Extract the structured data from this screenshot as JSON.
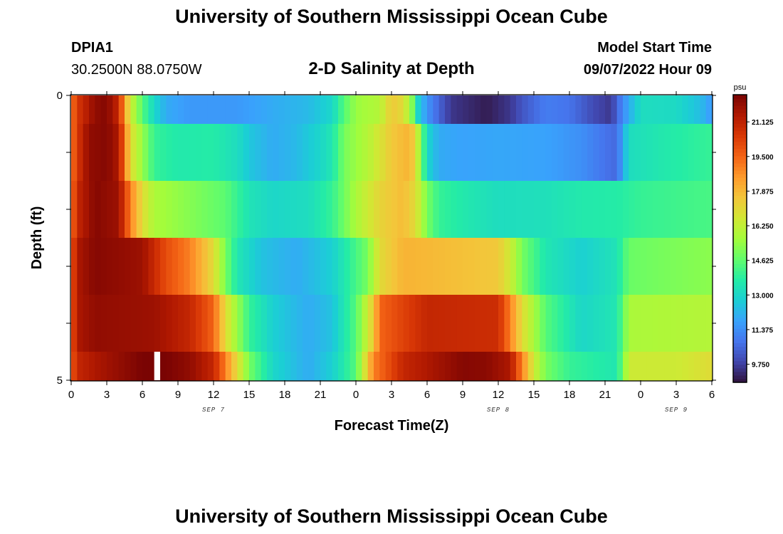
{
  "header": {
    "title": "University of Southern Mississippi Ocean Cube",
    "station": "DPIA1",
    "coords": "30.2500N  88.0750W",
    "subtitle": "2-D Salinity at Depth",
    "model_label": "Model Start Time",
    "model_time": "09/07/2022 Hour 09"
  },
  "footer": {
    "title": "University of Southern Mississippi Ocean Cube"
  },
  "colors": {
    "scale": [
      "#30123b",
      "#4145ab",
      "#4675ed",
      "#39a2fc",
      "#1bcfd4",
      "#24eca6",
      "#61fc6c",
      "#a4fc3b",
      "#d1e834",
      "#f3c63a",
      "#fe9b2d",
      "#f36315",
      "#d93806",
      "#b11901",
      "#7a0403"
    ]
  },
  "chart_data": {
    "type": "heatmap",
    "title": "2-D Salinity at Depth",
    "xlabel": "Forecast Time(Z)",
    "ylabel": "Depth (ft)",
    "colorbar_unit": "psu",
    "xlim": [
      0,
      54
    ],
    "ylim": [
      0,
      5
    ],
    "x_ticks": [
      0,
      3,
      6,
      9,
      12,
      15,
      18,
      21,
      24,
      27,
      30,
      33,
      36,
      39,
      42,
      45,
      48,
      51,
      54
    ],
    "x_tick_labels": [
      "0",
      "3",
      "6",
      "9",
      "12",
      "15",
      "18",
      "21",
      "0",
      "3",
      "6",
      "9",
      "12",
      "15",
      "18",
      "21",
      "0",
      "3",
      "6"
    ],
    "y_tick_labels": [
      {
        "value": 0,
        "label": "0"
      },
      {
        "value": 5,
        "label": "5"
      }
    ],
    "date_labels": [
      {
        "x": 12,
        "label": "SEP 7"
      },
      {
        "x": 36,
        "label": "SEP 8"
      },
      {
        "x": 51,
        "label": "SEP 9"
      }
    ],
    "colorbar_range": [
      8.9,
      22.4
    ],
    "colorbar_ticks": [
      9.75,
      11.375,
      13.0,
      14.625,
      16.25,
      17.875,
      19.5,
      21.125
    ],
    "colorbar_tick_labels": [
      "9.750",
      "11.375",
      "13.000",
      "14.625",
      "16.250",
      "17.875",
      "19.500",
      "21.125"
    ],
    "missing": [
      {
        "x": 7,
        "depth_band": 5
      }
    ],
    "depth_bands": [
      {
        "depth": [
          0.0,
          0.5
        ],
        "keypoints": [
          [
            0,
            19.0
          ],
          [
            0.5,
            20.5
          ],
          [
            2,
            22.0
          ],
          [
            3,
            22.2
          ],
          [
            4,
            21.0
          ],
          [
            4.5,
            18.5
          ],
          [
            5,
            16.5
          ],
          [
            6,
            14.5
          ],
          [
            7,
            13.0
          ],
          [
            8,
            12.0
          ],
          [
            10,
            11.6
          ],
          [
            14,
            11.6
          ],
          [
            17,
            12.0
          ],
          [
            20,
            12.3
          ],
          [
            22,
            13.0
          ],
          [
            23,
            14.5
          ],
          [
            24,
            15.5
          ],
          [
            26,
            16.0
          ],
          [
            27,
            17.5
          ],
          [
            28,
            17.0
          ],
          [
            28.8,
            15.0
          ],
          [
            29.2,
            13.0
          ],
          [
            30,
            11.5
          ],
          [
            31,
            10.5
          ],
          [
            32,
            9.6
          ],
          [
            35,
            9.1
          ],
          [
            37,
            9.6
          ],
          [
            38,
            10.2
          ],
          [
            40,
            11.0
          ],
          [
            42,
            10.8
          ],
          [
            44,
            10.0
          ],
          [
            45.5,
            9.6
          ],
          [
            46,
            10.5
          ],
          [
            47,
            12.0
          ],
          [
            48,
            13.2
          ],
          [
            51,
            13.1
          ],
          [
            53,
            12.4
          ],
          [
            54,
            11.6
          ]
        ]
      },
      {
        "depth": [
          0.5,
          1.5
        ],
        "keypoints": [
          [
            0,
            19.0
          ],
          [
            0.5,
            20.5
          ],
          [
            1.5,
            22.0
          ],
          [
            3,
            22.2
          ],
          [
            4,
            21.5
          ],
          [
            5,
            17.0
          ],
          [
            5.5,
            16.2
          ],
          [
            7,
            14.0
          ],
          [
            9,
            13.6
          ],
          [
            12,
            13.7
          ],
          [
            14,
            13.2
          ],
          [
            15,
            12.6
          ],
          [
            17,
            12.0
          ],
          [
            19,
            12.3
          ],
          [
            21,
            13.0
          ],
          [
            22,
            13.5
          ],
          [
            23,
            15.0
          ],
          [
            25,
            16.0
          ],
          [
            27,
            17.5
          ],
          [
            28.5,
            18.0
          ],
          [
            29,
            17.2
          ],
          [
            29.5,
            15.0
          ],
          [
            30,
            13.0
          ],
          [
            31,
            12.0
          ],
          [
            33,
            11.8
          ],
          [
            36,
            11.9
          ],
          [
            40,
            11.8
          ],
          [
            43,
            11.4
          ],
          [
            45,
            10.8
          ],
          [
            46,
            10.6
          ],
          [
            47,
            13.2
          ],
          [
            50,
            13.6
          ],
          [
            54,
            14.0
          ]
        ]
      },
      {
        "depth": [
          1.5,
          2.5
        ],
        "keypoints": [
          [
            0,
            19.0
          ],
          [
            0.5,
            21.0
          ],
          [
            2,
            22.2
          ],
          [
            4,
            21.8
          ],
          [
            5,
            19.0
          ],
          [
            6,
            17.0
          ],
          [
            7,
            15.8
          ],
          [
            10,
            15.2
          ],
          [
            13,
            14.6
          ],
          [
            15,
            13.4
          ],
          [
            17,
            13.0
          ],
          [
            20,
            13.2
          ],
          [
            22,
            14.0
          ],
          [
            24,
            15.8
          ],
          [
            26,
            17.2
          ],
          [
            28,
            17.8
          ],
          [
            29,
            17.0
          ],
          [
            30,
            15.0
          ],
          [
            31,
            14.0
          ],
          [
            33,
            13.6
          ],
          [
            36,
            13.2
          ],
          [
            40,
            13.3
          ],
          [
            43,
            13.6
          ],
          [
            46,
            13.7
          ],
          [
            48,
            14.0
          ],
          [
            54,
            14.3
          ]
        ]
      },
      {
        "depth": [
          2.5,
          3.5
        ],
        "keypoints": [
          [
            0,
            19.5
          ],
          [
            0.5,
            21.5
          ],
          [
            2,
            22.2
          ],
          [
            6,
            21.8
          ],
          [
            8,
            20.0
          ],
          [
            10,
            19.0
          ],
          [
            11,
            18.0
          ],
          [
            12,
            17.0
          ],
          [
            13,
            15.0
          ],
          [
            14,
            13.5
          ],
          [
            16,
            12.5
          ],
          [
            19,
            12.0
          ],
          [
            22,
            12.8
          ],
          [
            25,
            15.0
          ],
          [
            26,
            17.0
          ],
          [
            28,
            18.0
          ],
          [
            36,
            17.5
          ],
          [
            37,
            16.5
          ],
          [
            38,
            15.0
          ],
          [
            40,
            13.5
          ],
          [
            43,
            12.8
          ],
          [
            46,
            13.4
          ],
          [
            47,
            14.8
          ],
          [
            54,
            15.3
          ]
        ]
      },
      {
        "depth": [
          3.5,
          4.5
        ],
        "keypoints": [
          [
            0,
            19.5
          ],
          [
            0.5,
            21.5
          ],
          [
            2,
            22.0
          ],
          [
            7,
            21.8
          ],
          [
            10,
            21.0
          ],
          [
            12,
            19.5
          ],
          [
            13,
            17.0
          ],
          [
            14,
            15.5
          ],
          [
            15,
            14.0
          ],
          [
            17,
            12.8
          ],
          [
            20,
            12.0
          ],
          [
            22,
            12.5
          ],
          [
            24,
            14.5
          ],
          [
            25.5,
            17.5
          ],
          [
            26,
            19.5
          ],
          [
            30,
            21.0
          ],
          [
            36,
            20.8
          ],
          [
            37,
            19.0
          ],
          [
            38,
            17.0
          ],
          [
            40,
            14.5
          ],
          [
            43,
            13.0
          ],
          [
            46,
            13.5
          ],
          [
            47,
            15.8
          ],
          [
            54,
            16.0
          ]
        ]
      },
      {
        "depth": [
          4.5,
          5.0
        ],
        "keypoints": [
          [
            0,
            19.5
          ],
          [
            0.5,
            21.0
          ],
          [
            2,
            21.5
          ],
          [
            6,
            22.4
          ],
          [
            8,
            22.4
          ],
          [
            10,
            22.0
          ],
          [
            12,
            21.0
          ],
          [
            13,
            19.0
          ],
          [
            14,
            17.0
          ],
          [
            15,
            15.0
          ],
          [
            17,
            13.0
          ],
          [
            20,
            12.0
          ],
          [
            22,
            12.8
          ],
          [
            24,
            14.5
          ],
          [
            25.5,
            19.0
          ],
          [
            28,
            21.0
          ],
          [
            33,
            22.2
          ],
          [
            35,
            22.1
          ],
          [
            37,
            21.5
          ],
          [
            38,
            19.0
          ],
          [
            39,
            16.5
          ],
          [
            40,
            15.0
          ],
          [
            42,
            14.0
          ],
          [
            46,
            13.5
          ],
          [
            47,
            16.5
          ],
          [
            51,
            16.5
          ],
          [
            54,
            17.0
          ]
        ]
      }
    ]
  }
}
